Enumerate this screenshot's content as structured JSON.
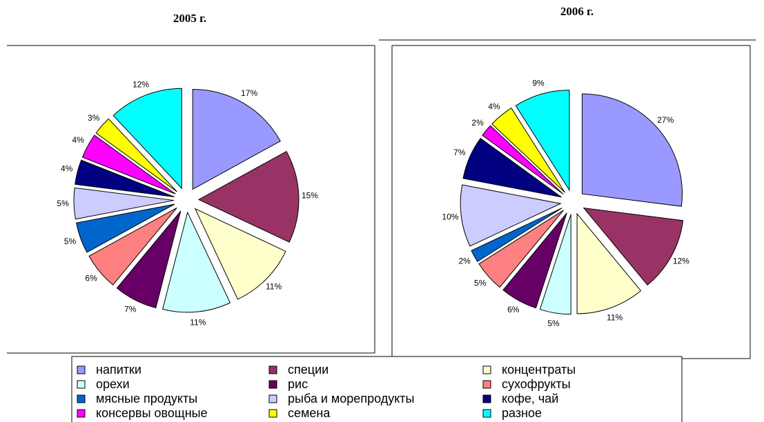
{
  "chart_data": [
    {
      "type": "pie",
      "title": "2005 г.",
      "values": [
        17,
        15,
        11,
        11,
        7,
        6,
        5,
        5,
        4,
        4,
        3,
        12
      ],
      "value_labels": [
        "17%",
        "15%",
        "11%",
        "11%",
        "7%",
        "6%",
        "5%",
        "5%",
        "4%",
        "4%",
        "3%",
        "12%"
      ]
    },
    {
      "type": "pie",
      "title": "2006 г.",
      "values": [
        27,
        12,
        11,
        5,
        6,
        5,
        2,
        10,
        7,
        2,
        4,
        9
      ],
      "value_labels": [
        "27%",
        "12%",
        "11%",
        "5%",
        "6%",
        "5%",
        "2%",
        "10%",
        "7%",
        "2%",
        "4%",
        "9%"
      ]
    }
  ],
  "legend": {
    "names": [
      "напитки",
      "специи",
      "концентраты",
      "орехи",
      "рис",
      "сухофрукты",
      "мясные продукты",
      "рыба и морепродукты",
      "кофе, чай",
      "консервы овощные",
      "семена",
      "разное"
    ],
    "colors": [
      "#9999ff",
      "#993366",
      "#ffffcc",
      "#ccffff",
      "#660066",
      "#ff8080",
      "#0066cc",
      "#ccccff",
      "#000080",
      "#ff00ff",
      "#ffff00",
      "#00ffff"
    ]
  }
}
